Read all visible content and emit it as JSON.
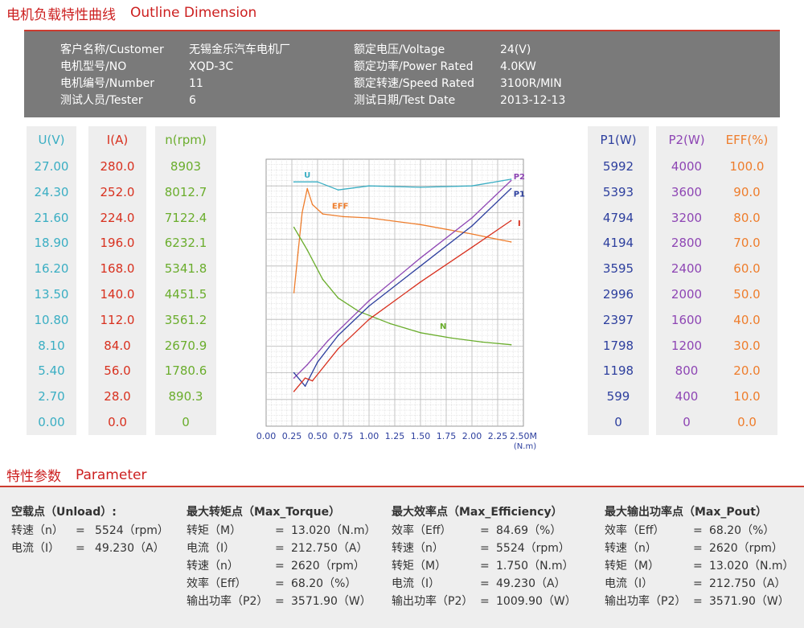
{
  "header": {
    "title_cn": "电机负载特性曲线",
    "title_en": "Outline Dimension"
  },
  "info": {
    "left": [
      {
        "label": "客户名称/Customer",
        "value": "无锡金乐汽车电机厂"
      },
      {
        "label": "电机型号/NO",
        "value": "XQD-3C"
      },
      {
        "label": "电机编号/Number",
        "value": "11"
      },
      {
        "label": "测试人员/Tester",
        "value": "6"
      }
    ],
    "right": [
      {
        "label": "额定电压/Voltage",
        "value": "24(V)"
      },
      {
        "label": "额定功率/Power Rated",
        "value": "4.0KW"
      },
      {
        "label": "额定转速/Speed Rated",
        "value": "3100R/MIN"
      },
      {
        "label": "测试日期/Test Date",
        "value": "2013-12-13"
      }
    ]
  },
  "colors": {
    "u": "#3aaec3",
    "i": "#d8301e",
    "n": "#6aad2c",
    "p1": "#2d3f9e",
    "p2": "#8e46b4",
    "eff": "#ee7d2c",
    "accent": "#cc1f1f"
  },
  "scales": {
    "u": {
      "header": "U(V)",
      "values": [
        "27.00",
        "24.30",
        "21.60",
        "18.90",
        "16.20",
        "13.50",
        "10.80",
        "8.10",
        "5.40",
        "2.70",
        "0.00"
      ]
    },
    "i": {
      "header": "I(A)",
      "values": [
        "280.0",
        "252.0",
        "224.0",
        "196.0",
        "168.0",
        "140.0",
        "112.0",
        "84.0",
        "56.0",
        "28.0",
        "0.0"
      ]
    },
    "n": {
      "header": "n(rpm)",
      "values": [
        "8903",
        "8012.7",
        "7122.4",
        "6232.1",
        "5341.8",
        "4451.5",
        "3561.2",
        "2670.9",
        "1780.6",
        "890.3",
        "0"
      ]
    },
    "p1": {
      "header": "P1(W)",
      "values": [
        "5992",
        "5393",
        "4794",
        "4194",
        "3595",
        "2996",
        "2397",
        "1798",
        "1198",
        "599",
        "0"
      ]
    },
    "p2": {
      "header": "P2(W)",
      "values": [
        "4000",
        "3600",
        "3200",
        "2800",
        "2400",
        "2000",
        "1600",
        "1200",
        "800",
        "400",
        "0"
      ]
    },
    "eff": {
      "header": "EFF(%)",
      "values": [
        "100.0",
        "90.0",
        "80.0",
        "70.0",
        "60.0",
        "50.0",
        "40.0",
        "30.0",
        "20.0",
        "10.0",
        "0.0"
      ]
    }
  },
  "chart_data": {
    "type": "line",
    "xlabel": "(N.m)",
    "x_ticks": [
      "0.00",
      "0.25",
      "0.50",
      "0.75",
      "1.00",
      "1.25",
      "1.50",
      "1.75",
      "2.00",
      "2.25",
      "2.50M"
    ],
    "xlim": [
      0,
      2.5
    ],
    "ylim": [
      0,
      10
    ],
    "grid": true,
    "series": [
      {
        "name": "U",
        "key": "u",
        "label_at": [
          0.4,
          9.3
        ],
        "points": [
          [
            0.27,
            9.15
          ],
          [
            0.5,
            9.15
          ],
          [
            0.7,
            8.85
          ],
          [
            1.0,
            9.0
          ],
          [
            1.5,
            8.95
          ],
          [
            2.0,
            9.0
          ],
          [
            2.3,
            9.2
          ],
          [
            2.38,
            9.25
          ]
        ]
      },
      {
        "name": "EFF",
        "key": "eff",
        "label_at": [
          0.72,
          8.15
        ],
        "points": [
          [
            0.27,
            5.0
          ],
          [
            0.31,
            6.5
          ],
          [
            0.35,
            8.0
          ],
          [
            0.4,
            8.9
          ],
          [
            0.45,
            8.3
          ],
          [
            0.55,
            7.95
          ],
          [
            0.75,
            7.85
          ],
          [
            1.0,
            7.8
          ],
          [
            1.5,
            7.55
          ],
          [
            2.0,
            7.2
          ],
          [
            2.25,
            7.0
          ],
          [
            2.38,
            6.9
          ]
        ]
      },
      {
        "name": "N",
        "key": "n",
        "label_at": [
          1.72,
          3.65
        ],
        "points": [
          [
            0.27,
            7.45
          ],
          [
            0.4,
            6.6
          ],
          [
            0.55,
            5.5
          ],
          [
            0.7,
            4.8
          ],
          [
            0.9,
            4.3
          ],
          [
            1.2,
            3.85
          ],
          [
            1.5,
            3.5
          ],
          [
            1.8,
            3.3
          ],
          [
            2.1,
            3.15
          ],
          [
            2.38,
            3.05
          ]
        ]
      },
      {
        "name": "P2",
        "key": "p2",
        "label_at": [
          2.46,
          9.25
        ],
        "points": [
          [
            0.27,
            1.8
          ],
          [
            0.4,
            2.3
          ],
          [
            0.6,
            3.2
          ],
          [
            1.0,
            4.7
          ],
          [
            1.5,
            6.3
          ],
          [
            2.0,
            7.8
          ],
          [
            2.38,
            9.2
          ]
        ]
      },
      {
        "name": "P1",
        "key": "p1",
        "label_at": [
          2.46,
          8.6
        ],
        "points": [
          [
            0.27,
            2.0
          ],
          [
            0.38,
            1.5
          ],
          [
            0.5,
            2.4
          ],
          [
            0.7,
            3.4
          ],
          [
            1.0,
            4.5
          ],
          [
            1.5,
            6.0
          ],
          [
            2.0,
            7.5
          ],
          [
            2.38,
            8.9
          ]
        ]
      },
      {
        "name": "I",
        "key": "i",
        "label_at": [
          2.46,
          7.5
        ],
        "points": [
          [
            0.27,
            1.3
          ],
          [
            0.38,
            1.8
          ],
          [
            0.45,
            1.7
          ],
          [
            0.7,
            2.9
          ],
          [
            1.0,
            4.0
          ],
          [
            1.5,
            5.4
          ],
          [
            2.0,
            6.7
          ],
          [
            2.38,
            7.7
          ]
        ]
      }
    ]
  },
  "parameter": {
    "title_cn": "特性参数",
    "title_en": "Parameter",
    "groups": [
      {
        "head": "空载点（Unload）:",
        "rows": [
          {
            "k": "转速（n）",
            "eq": "=",
            "v": "5524（rpm）"
          },
          {
            "k": "电流（I）",
            "eq": "=",
            "v": "49.230（A）"
          }
        ]
      },
      {
        "head": "最大转矩点（Max_Torque）",
        "rows": [
          {
            "k": "转矩（M）",
            "eq": "=",
            "v": "13.020（N.m）"
          },
          {
            "k": "电流（I）",
            "eq": "=",
            "v": "212.750（A）"
          },
          {
            "k": "转速（n）",
            "eq": "=",
            "v": "2620（rpm）"
          },
          {
            "k": "效率（Eff）",
            "eq": "=",
            "v": "68.20（%）"
          },
          {
            "k": "输出功率（P2）",
            "eq": "=",
            "v": "3571.90（W）"
          }
        ]
      },
      {
        "head": "最大效率点（Max_Efficiency）",
        "rows": [
          {
            "k": "效率（Eff）",
            "eq": "=",
            "v": "84.69（%）"
          },
          {
            "k": "转速（n）",
            "eq": "=",
            "v": "5524（rpm）"
          },
          {
            "k": "转矩（M）",
            "eq": "=",
            "v": "1.750（N.m）"
          },
          {
            "k": "电流（I）",
            "eq": "=",
            "v": "49.230（A）"
          },
          {
            "k": "输出功率（P2）",
            "eq": "=",
            "v": "1009.90（W）"
          }
        ]
      },
      {
        "head": "最大输出功率点（Max_Pout）",
        "rows": [
          {
            "k": "效率（Eff）",
            "eq": "=",
            "v": "68.20（%）"
          },
          {
            "k": "转速（n）",
            "eq": "=",
            "v": "2620（rpm）"
          },
          {
            "k": "转矩（M）",
            "eq": "=",
            "v": "13.020（N.m）"
          },
          {
            "k": "电流（I）",
            "eq": "=",
            "v": "212.750（A）"
          },
          {
            "k": "输出功率（P2）",
            "eq": "=",
            "v": "3571.90（W）"
          }
        ]
      }
    ]
  }
}
